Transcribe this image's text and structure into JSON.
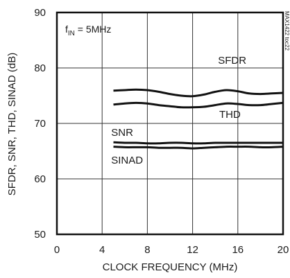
{
  "chart_data": {
    "type": "line",
    "title": "",
    "annotation_label": "f",
    "annotation_subscript": "IN",
    "annotation_value": " = 5MHz",
    "watermark": "MAX1422 toc22",
    "xlabel": "CLOCK FREQUENCY (MHz)",
    "ylabel": "SFDR, SNR, THD, SINAD (dB)",
    "xlim": [
      0,
      20
    ],
    "ylim": [
      50,
      90
    ],
    "xticks": [
      0,
      4,
      8,
      12,
      16,
      20
    ],
    "yticks": [
      50,
      60,
      70,
      80,
      90
    ],
    "grid": true,
    "series": [
      {
        "name": "SFDR",
        "x": [
          5,
          6,
          7,
          8,
          9,
          10,
          11,
          12,
          13,
          14,
          15,
          16,
          17,
          18,
          19,
          20
        ],
        "y": [
          75.9,
          76.0,
          76.1,
          76.0,
          75.7,
          75.3,
          75.0,
          74.9,
          75.2,
          75.7,
          76.0,
          75.8,
          75.4,
          75.3,
          75.4,
          75.5
        ]
      },
      {
        "name": "THD",
        "x": [
          5,
          6,
          7,
          8,
          9,
          10,
          11,
          12,
          13,
          14,
          15,
          16,
          17,
          18,
          19,
          20
        ],
        "y": [
          73.4,
          73.6,
          73.7,
          73.6,
          73.3,
          73.1,
          72.9,
          72.9,
          73.0,
          73.3,
          73.6,
          73.5,
          73.3,
          73.3,
          73.5,
          73.7
        ]
      },
      {
        "name": "SNR",
        "x": [
          5,
          6,
          7,
          8,
          9,
          10,
          11,
          12,
          13,
          14,
          15,
          16,
          17,
          18,
          19,
          20
        ],
        "y": [
          66.6,
          66.5,
          66.5,
          66.4,
          66.4,
          66.5,
          66.5,
          66.4,
          66.4,
          66.5,
          66.5,
          66.5,
          66.5,
          66.5,
          66.5,
          66.5
        ]
      },
      {
        "name": "SINAD",
        "x": [
          5,
          6,
          7,
          8,
          9,
          10,
          11,
          12,
          13,
          14,
          15,
          16,
          17,
          18,
          19,
          20
        ],
        "y": [
          65.8,
          65.7,
          65.7,
          65.7,
          65.6,
          65.6,
          65.6,
          65.5,
          65.6,
          65.7,
          65.8,
          65.8,
          65.8,
          65.7,
          65.7,
          65.8
        ]
      }
    ]
  }
}
